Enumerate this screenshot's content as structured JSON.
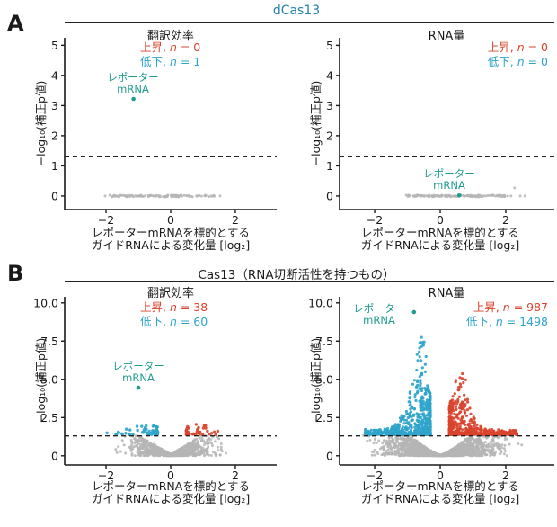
{
  "panel_a": {
    "letter": "A",
    "header": "dCas13"
  },
  "panel_b": {
    "letter": "B",
    "header": "Cas13（RNA切断活性を持つもの）"
  },
  "colors": {
    "up": "#d9432d",
    "down": "#2fa4cb",
    "neutral": "#b5b5b5",
    "reporter": "#1d9c8c",
    "header_a": "#2581ad",
    "axis": "#1a1a1a",
    "threshold_line": "#222222"
  },
  "chart_data": {
    "type": "scatter",
    "description": "Volcano plots: effect of reporter-mRNA-targeting guide RNAs. Panel A = dCas13 (no cleavage), Panel B = Cas13 (RNA-cleaving). Dashed line = significance threshold -log10(adjusted p) = 1.3.",
    "plots": [
      {
        "id": "a-left",
        "title": "翻訳効率",
        "ylabel": "−log₁₀(補正p値)",
        "xlabel_line1": "レポーターmRNAを標的とする",
        "xlabel_line2": "ガイドRNAによる変化量 [log₂]",
        "legend": {
          "up_prefix": "上昇, ",
          "up_var": "n",
          "up_rest": " = 0",
          "n_up": 0,
          "down_prefix": "低下, ",
          "down_var": "n",
          "down_rest": " = 1",
          "n_down": 1
        },
        "xlim": [
          -3.28,
          3.28
        ],
        "ylim": [
          -0.45,
          5.25
        ],
        "x_ticks": [
          {
            "v": -2,
            "label": "−2"
          },
          {
            "v": 0,
            "label": "0"
          },
          {
            "v": 2,
            "label": "2"
          }
        ],
        "y_ticks": [
          {
            "v": 0,
            "label": "0"
          },
          {
            "v": 1,
            "label": "1"
          },
          {
            "v": 2,
            "label": "2"
          },
          {
            "v": 3,
            "label": "3"
          },
          {
            "v": 4,
            "label": "4"
          },
          {
            "v": 5,
            "label": "5"
          }
        ],
        "threshold_y": 1.3,
        "reporter": {
          "x": -1.15,
          "y": 3.22,
          "label": [
            "レポーター",
            "mRNA"
          ]
        },
        "clusters": [
          {
            "type": "band",
            "color": "neutral",
            "n": 115,
            "x_range": [
              -1.9,
              1.42
            ],
            "y": 0,
            "jitter": 0.03,
            "r": 1.5,
            "seed": 101
          },
          {
            "type": "explicit",
            "color": "neutral",
            "points": [
              [
                -2.03,
                0
              ],
              [
                1.53,
                0
              ]
            ],
            "r": 1.5
          }
        ]
      },
      {
        "id": "a-right",
        "title": "RNA量",
        "ylabel": "−log₁₀(補正p値)",
        "xlabel_line1": "レポーターmRNAを標的とする",
        "xlabel_line2": "ガイドRNAによる変化量 [log₂]",
        "legend": {
          "up_prefix": "上昇, ",
          "up_var": "n",
          "up_rest": " = 0",
          "n_up": 0,
          "down_prefix": "低下, ",
          "down_var": "n",
          "down_rest": " = 0",
          "n_down": 0
        },
        "xlim": [
          -3.07,
          3.48
        ],
        "ylim": [
          -0.45,
          5.25
        ],
        "x_ticks": [
          {
            "v": -2,
            "label": "−2"
          },
          {
            "v": 0,
            "label": "0"
          },
          {
            "v": 2,
            "label": "2"
          }
        ],
        "y_ticks": [
          {
            "v": 0,
            "label": "0"
          },
          {
            "v": 1,
            "label": "1"
          },
          {
            "v": 2,
            "label": "2"
          },
          {
            "v": 3,
            "label": "3"
          },
          {
            "v": 4,
            "label": "4"
          },
          {
            "v": 5,
            "label": "5"
          }
        ],
        "threshold_y": 1.3,
        "reporter": {
          "x": 0.58,
          "y": 0.02,
          "label": [
            "レポーター",
            "mRNA"
          ]
        },
        "clusters": [
          {
            "type": "band",
            "color": "neutral",
            "n": 115,
            "x_range": [
              -1.07,
              1.98
            ],
            "y": 0,
            "jitter": 0.03,
            "r": 1.5,
            "seed": 202
          },
          {
            "type": "explicit",
            "color": "neutral",
            "points": [
              [
                2.06,
                0
              ],
              [
                2.16,
                0
              ],
              [
                2.27,
                0.27
              ],
              [
                2.44,
                0
              ],
              [
                2.58,
                0
              ]
            ],
            "r": 1.5
          }
        ]
      },
      {
        "id": "b-left",
        "title": "翻訳効率",
        "ylabel": "−log₁₀(補正p値)",
        "xlabel_line1": "レポーターmRNAを標的とする",
        "xlabel_line2": "ガイドRNAによる変化量 [log₂]",
        "legend": {
          "up_prefix": "上昇, ",
          "up_var": "n",
          "up_rest": " = 38",
          "n_up": 38,
          "down_prefix": "低下, ",
          "down_var": "n",
          "down_rest": " = 60",
          "n_down": 60
        },
        "xlim": [
          -3.28,
          3.28
        ],
        "ylim": [
          -0.6,
          10.4
        ],
        "x_ticks": [
          {
            "v": -2,
            "label": "−2"
          },
          {
            "v": 0,
            "label": "0"
          },
          {
            "v": 2,
            "label": "2"
          }
        ],
        "y_ticks": [
          {
            "v": 0,
            "label": "0"
          },
          {
            "v": 2.5,
            "label": "2.5"
          },
          {
            "v": 5,
            "label": "5.0"
          },
          {
            "v": 7.5,
            "label": "7.5"
          },
          {
            "v": 10,
            "label": "10.0"
          }
        ],
        "threshold_y": 1.3,
        "reporter": {
          "x": -1.0,
          "y": 4.45,
          "label": [
            "レポーター",
            "mRNA"
          ]
        },
        "clusters": [
          {
            "type": "cloud",
            "color": "neutral",
            "n": 1000,
            "sigma": 0.62,
            "clip": 1.78,
            "cap_base": 0.12,
            "cap_k": 1.3,
            "cap_pow": 1.1,
            "cap_max": 1.4,
            "y_pow": 1.2,
            "r": 1.5,
            "seed": 303
          },
          {
            "type": "wedge",
            "color": "down",
            "n": 56,
            "side": -1,
            "x_min": 0.4,
            "x_max": 1.75,
            "peak": 0.8,
            "width": 0.5,
            "h_peak": 0.75,
            "h_edge": 0.12,
            "y_min": 1.38,
            "y_pow": 1.6,
            "r": 1.7,
            "seed": 304
          },
          {
            "type": "explicit",
            "color": "down",
            "points": [
              [
                -1.97,
                1.5
              ],
              [
                -1.62,
                1.55
              ]
            ],
            "r": 1.7
          },
          {
            "type": "wedge",
            "color": "up",
            "n": 38,
            "side": 1,
            "x_min": 0.48,
            "x_max": 1.52,
            "peak": 0.9,
            "width": 0.45,
            "h_peak": 0.7,
            "h_edge": 0.12,
            "y_min": 1.38,
            "y_pow": 1.6,
            "r": 1.7,
            "seed": 305
          }
        ]
      },
      {
        "id": "b-right",
        "title": "RNA量",
        "ylabel": "−log₁₀(補正p値)",
        "xlabel_line1": "レポーターmRNAを標的とする",
        "xlabel_line2": "ガイドRNAによる変化量 [log₂]",
        "legend": {
          "up_prefix": "上昇, ",
          "up_var": "n",
          "up_rest": " = 987",
          "n_up": 987,
          "down_prefix": "低下, ",
          "down_var": "n",
          "down_rest": " = 1498",
          "n_down": 1498
        },
        "xlim": [
          -3.07,
          3.48
        ],
        "ylim": [
          -0.6,
          10.4
        ],
        "x_ticks": [
          {
            "v": -2,
            "label": "−2"
          },
          {
            "v": 0,
            "label": "0"
          },
          {
            "v": 2,
            "label": "2"
          }
        ],
        "y_ticks": [
          {
            "v": 0,
            "label": "0"
          },
          {
            "v": 2.5,
            "label": "2.5"
          },
          {
            "v": 5,
            "label": "5.0"
          },
          {
            "v": 7.5,
            "label": "7.5"
          },
          {
            "v": 10,
            "label": "10.0"
          }
        ],
        "threshold_y": 1.3,
        "reporter": {
          "x": -0.8,
          "y": 9.4,
          "label": [
            "レポーター",
            "mRNA"
          ]
        },
        "clusters": [
          {
            "type": "cloud",
            "color": "neutral",
            "n": 2100,
            "sigma": 0.8,
            "clip": 2.52,
            "cap_base": 0.05,
            "cap_k": 1.45,
            "cap_pow": 1.3,
            "cap_max": 1.4,
            "y_pow": 1.25,
            "r": 1.5,
            "seed": 406
          },
          {
            "type": "wedge",
            "color": "down",
            "n": 620,
            "side": -1,
            "x_min": 0.3,
            "x_max": 2.3,
            "peak": 0.62,
            "width": 0.34,
            "h_peak": 4.0,
            "h_edge": 0.35,
            "y_min": 1.38,
            "y_pow": 2.3,
            "r": 1.6,
            "seed": 407
          },
          {
            "type": "scatter",
            "color": "down",
            "n": 22,
            "x_range": [
              -0.72,
              -0.42
            ],
            "y_range": [
              5.2,
              8.05
            ],
            "r": 1.6,
            "seed": 408
          },
          {
            "type": "wedge",
            "color": "up",
            "n": 470,
            "side": 1,
            "x_min": 0.28,
            "x_max": 2.35,
            "peak": 0.58,
            "width": 0.3,
            "h_peak": 3.2,
            "h_edge": 0.35,
            "y_min": 1.38,
            "y_pow": 2.2,
            "r": 1.6,
            "seed": 409
          },
          {
            "type": "scatter",
            "color": "up",
            "n": 8,
            "x_range": [
              0.45,
              0.78
            ],
            "y_range": [
              4.5,
              5.6
            ],
            "r": 1.6,
            "seed": 410
          }
        ]
      }
    ]
  }
}
